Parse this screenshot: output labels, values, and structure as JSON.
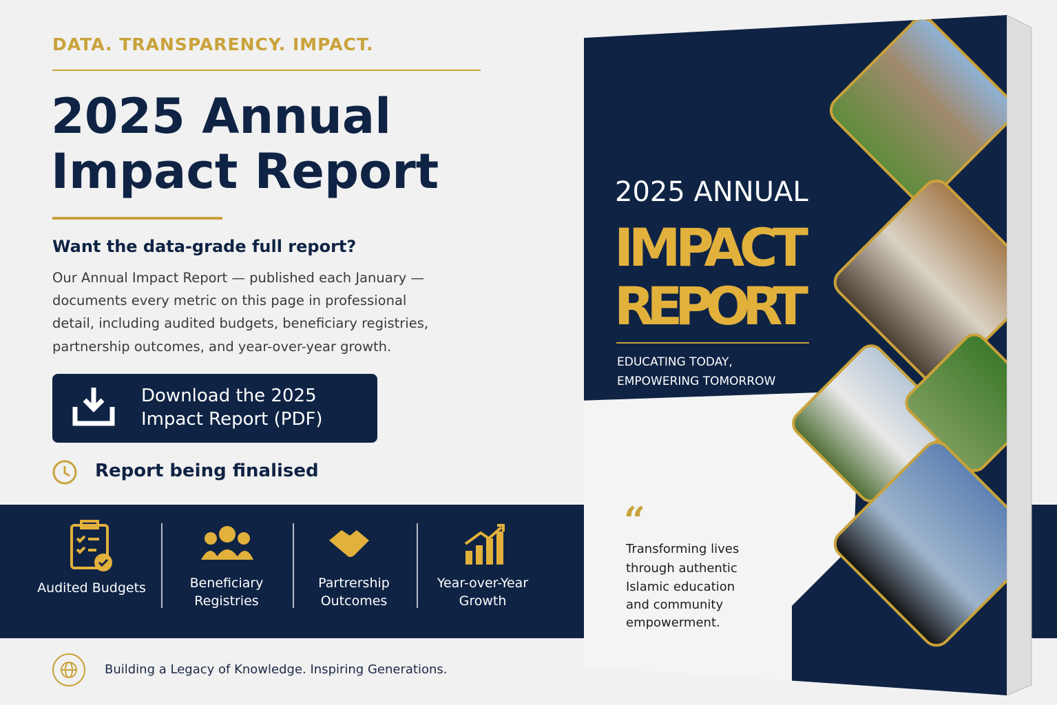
{
  "header": {
    "tagline": "DATA. TRANSPARENCY. IMPACT.",
    "title_lines": [
      "2025 Annual",
      "Impact Report"
    ]
  },
  "intro": {
    "heading": "Want the data-grade full report?",
    "body_lines": [
      "Our Annual Impact Report — published each January —",
      "documents every metric on this page in professional",
      "detail, including audited budgets, beneficiary registries,",
      "partnership outcomes, and year-over-year growth."
    ]
  },
  "button": {
    "label_lines": [
      "Download the 2025",
      "Impact Report (PDF)"
    ]
  },
  "status": "Report being finalised",
  "features": [
    {
      "lines": [
        "Audited Budgets"
      ]
    },
    {
      "lines": [
        "Beneficiary",
        "Registries"
      ]
    },
    {
      "lines": [
        "Partrership",
        "Outcomes"
      ]
    },
    {
      "lines": [
        "Year-over-Year",
        "Growth"
      ]
    }
  ],
  "footer": "Building a Legacy of Knowledge. Inspiring Generations.",
  "book": {
    "title_top": "2025 ANNUAL",
    "title_main": [
      "IMPACT",
      "REPORT"
    ],
    "subtitle": [
      "EDUCATING TODAY,",
      "EMPOWERING TOMORROW"
    ],
    "quote_mark": "“",
    "quote_lines": [
      "Transforming lives",
      "through authentic",
      "Islamic education",
      "and community",
      "empowerment."
    ]
  }
}
